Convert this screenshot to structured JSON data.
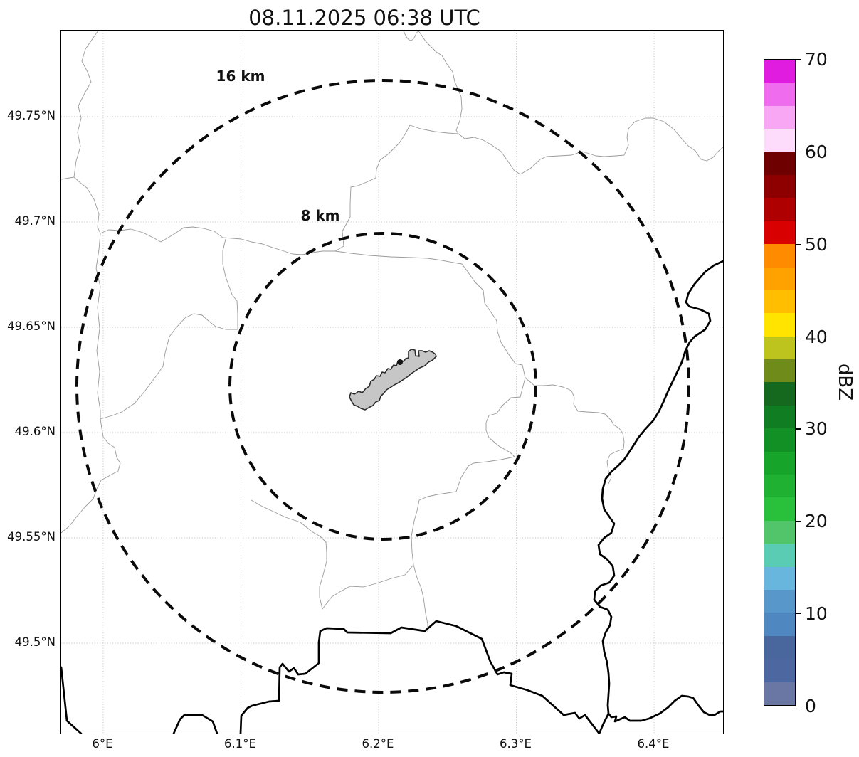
{
  "title": "08.11.2025 06:38 UTC",
  "axes": {
    "x_ticks": [
      "6°E",
      "6.1°E",
      "6.2°E",
      "6.3°E",
      "6.4°E"
    ],
    "y_ticks": [
      "49.75°N",
      "49.7°N",
      "49.65°N",
      "49.6°N",
      "49.55°N",
      "49.5°N"
    ]
  },
  "range_rings": {
    "outer_label": "16 km",
    "inner_label": "8 km",
    "outer_radius_km": 16,
    "inner_radius_km": 8
  },
  "map_features": {
    "city_area": "urban-boundary-polygon",
    "radar_site_marker": "dark-dot",
    "thick_lines": "country-border-and-river",
    "thin_lines": "administrative-boundaries"
  },
  "colorbar": {
    "label": "dBZ",
    "min": 0,
    "max": 70,
    "step_dbz": 2.5,
    "ticks": [
      "70",
      "60",
      "50",
      "40",
      "30",
      "20",
      "10",
      "0"
    ],
    "segments_top_to_bottom": [
      "#e01ce0",
      "#ef6cef",
      "#f7a7f3",
      "#fcdcfa",
      "#6e0000",
      "#8e0000",
      "#ae0000",
      "#d80000",
      "#ff8c00",
      "#ffa200",
      "#ffbf00",
      "#ffe400",
      "#bdc41e",
      "#6f8c1b",
      "#15691f",
      "#107d22",
      "#129026",
      "#16a42b",
      "#1fb232",
      "#29c03c",
      "#52c56a",
      "#5accb4",
      "#68b5de",
      "#5797c9",
      "#4f88c0",
      "#49679d",
      "#4d68a0",
      "#6a76a4"
    ],
    "accent_colors": {
      "grid": "#bbbbbb",
      "admin_lines": "#9a9a9a",
      "borders": "#000000",
      "city_fill": "#c6c6c6"
    }
  }
}
